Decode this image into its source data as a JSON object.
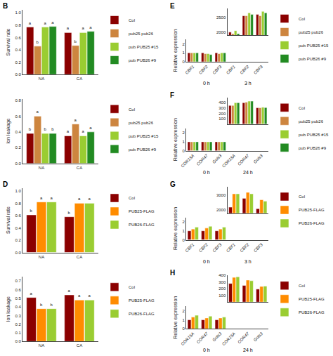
{
  "chart_data": [
    {
      "type": "bar",
      "title": "B",
      "y_label": "Survival rate",
      "categories": [
        "NA",
        "CA"
      ],
      "series": [
        {
          "name": "Col",
          "color": "#8B0000",
          "values": [
            0.77,
            0.68
          ],
          "annotations": [
            "a",
            "a"
          ]
        },
        {
          "name": "pub25 pub26",
          "color": "#CD853F",
          "values": [
            0.46,
            0.47
          ],
          "annotations": [
            "b",
            "b"
          ]
        },
        {
          "name": "pub PUB25 #15",
          "color": "#9ACD32",
          "values": [
            0.77,
            0.68
          ],
          "annotations": [
            "a",
            "a"
          ]
        },
        {
          "name": "pub PUB26 #9",
          "color": "#228B22",
          "values": [
            0.78,
            0.7
          ],
          "annotations": [
            "a",
            "a"
          ]
        }
      ],
      "ylim": [
        0,
        1.05
      ],
      "yticks": [
        {
          "value": 0,
          "label": "0.0"
        },
        0.2,
        0.4,
        0.6,
        0.8,
        {
          "value": 1,
          "label": "1.0"
        }
      ],
      "grid": false,
      "legend": "upper right"
    },
    {
      "type": "bar",
      "y_label": "Ion leakage",
      "categories": [
        "NA",
        "CA"
      ],
      "series": [
        {
          "name": "Col",
          "color": "#8B0000",
          "values": [
            0.38,
            0.35
          ],
          "annotations": [
            "b",
            "a"
          ]
        },
        {
          "name": "pub25 pub26",
          "color": "#CD853F",
          "values": [
            0.6,
            0.5
          ],
          "annotations": [
            "a",
            "a"
          ]
        },
        {
          "name": "pub PUB25 #15",
          "color": "#9ACD32",
          "values": [
            0.38,
            0.35
          ],
          "annotations": [
            "b",
            "a"
          ]
        },
        {
          "name": "pub PUB26 #9",
          "color": "#228B22",
          "values": [
            0.38,
            0.4
          ],
          "annotations": [
            "b",
            "a"
          ]
        }
      ],
      "ylim": [
        0,
        0.82
      ],
      "yticks": [
        {
          "value": 0,
          "label": "0.0"
        },
        0.2,
        0.4,
        0.6,
        0.8
      ],
      "grid": false,
      "legend": "upper right"
    },
    {
      "type": "bar",
      "title": "D",
      "y_label": "Survival rate",
      "categories": [
        "NA",
        "CA"
      ],
      "series": [
        {
          "name": "Col",
          "color": "#8B0000",
          "values": [
            0.61,
            0.58
          ],
          "annotations": [
            "b",
            "b"
          ]
        },
        {
          "name": "PUB25-FLAG",
          "color": "#FF8C00",
          "values": [
            0.82,
            0.8
          ],
          "annotations": [
            "a",
            "a"
          ]
        },
        {
          "name": "PUB26-FLAG",
          "color": "#9ACD32",
          "values": [
            0.82,
            0.8
          ],
          "annotations": [
            "a",
            "a"
          ]
        }
      ],
      "ylim": [
        0,
        1.05
      ],
      "yticks": [
        {
          "value": 0,
          "label": "0.0"
        },
        0.2,
        0.4,
        0.6,
        0.8,
        {
          "value": 1,
          "label": "1.0"
        }
      ],
      "grid": false,
      "legend": "upper right"
    },
    {
      "type": "bar",
      "y_label": "Ion leakage",
      "categories": [
        "NA",
        "CA"
      ],
      "series": [
        {
          "name": "Col",
          "color": "#8B0000",
          "values": [
            0.51,
            0.54
          ],
          "annotations": [
            "a",
            "a"
          ]
        },
        {
          "name": "PUB25-FLAG",
          "color": "#FF8C00",
          "values": [
            0.38,
            0.48
          ],
          "annotations": [
            "b",
            "a"
          ]
        },
        {
          "name": "PUB26-FLAG",
          "color": "#9ACD32",
          "values": [
            0.38,
            0.48
          ],
          "annotations": [
            "b",
            "a"
          ]
        }
      ],
      "ylim": [
        0,
        0.75
      ],
      "yticks": [
        {
          "value": 0,
          "label": "0.0"
        },
        0.1,
        0.2,
        0.3,
        0.4,
        0.5,
        0.6,
        0.7
      ],
      "grid": false,
      "legend": "upper right"
    },
    {
      "type": "bar",
      "title": "E",
      "categories": [
        null,
        null,
        null
      ],
      "series": [
        {
          "name": "Col",
          "color": "#8B0000",
          "values": [
            2000,
            2550,
            2600
          ]
        },
        {
          "name": "pub25 pub26",
          "color": "#CD853F",
          "values": [
            1950,
            2550,
            2550
          ]
        },
        {
          "name": "pub PUB25 #15",
          "color": "#9ACD32",
          "values": [
            2050,
            2650,
            2700
          ]
        },
        {
          "name": "pub PUB26 #9",
          "color": "#228B22",
          "values": [
            1950,
            2600,
            2650
          ]
        }
      ],
      "ylim": [
        1900,
        2800
      ],
      "yticks": [
        2000,
        2500
      ],
      "tick_labels": "y",
      "grid": false,
      "legend": "upper right"
    },
    {
      "type": "bar",
      "y_label": "Relative expression",
      "categories": [
        [
          "0 h",
          "CBF1"
        ],
        [
          "0 h",
          "CBF2"
        ],
        [
          "0 h",
          "CBF3"
        ],
        [
          "3 h",
          "CBF1"
        ],
        [
          "3 h",
          "CBF2"
        ],
        [
          "3 h",
          "CBF3"
        ]
      ],
      "series": [
        {
          "name": "Col",
          "color": "#8B0000",
          "values": [
            1.0,
            1.0,
            1.0,
            null,
            null,
            null
          ]
        },
        {
          "name": "pub25 pub26",
          "color": "#CD853F",
          "values": [
            1.0,
            0.9,
            0.9,
            null,
            null,
            null
          ]
        },
        {
          "name": "pub PUB25 #15",
          "color": "#9ACD32",
          "values": [
            1.0,
            0.9,
            1.0,
            null,
            null,
            null
          ]
        },
        {
          "name": "pub PUB26 #9",
          "color": "#228B22",
          "values": [
            1.0,
            0.8,
            1.0,
            null,
            null,
            null
          ]
        }
      ],
      "ylim": [
        0,
        2.5
      ],
      "yticks": [
        0,
        1,
        2
      ],
      "grid": false
    },
    {
      "type": "bar",
      "title": "F",
      "categories": [
        null,
        null,
        null
      ],
      "series": [
        {
          "name": "Col",
          "color": "#8B0000",
          "values": [
            350,
            400,
            305
          ]
        },
        {
          "name": "pub25 pub26",
          "color": "#CD853F",
          "values": [
            350,
            410,
            305
          ]
        },
        {
          "name": "pub PUB25 #15",
          "color": "#9ACD32",
          "values": [
            400,
            430,
            315
          ]
        },
        {
          "name": "pub PUB26 #9",
          "color": "#228B22",
          "values": [
            400,
            430,
            310
          ]
        }
      ],
      "ylim": [
        0,
        500
      ],
      "yticks": [
        100,
        200,
        300,
        400
      ],
      "tick_labels": "y",
      "grid": false,
      "legend": "upper right"
    },
    {
      "type": "bar",
      "y_label": "Relative expression",
      "categories": [
        [
          "0 h",
          "COR15A"
        ],
        [
          "0 h",
          "COR47"
        ],
        [
          "0 h",
          "Gols3"
        ],
        [
          "24 h",
          "COR15A"
        ],
        [
          "24 h",
          "COR47"
        ],
        [
          "24 h",
          "Gols3"
        ]
      ],
      "series": [
        {
          "name": "Col",
          "color": "#8B0000",
          "values": [
            1.0,
            1.0,
            1.0,
            null,
            null,
            null
          ]
        },
        {
          "name": "pub25 pub26",
          "color": "#CD853F",
          "values": [
            1.0,
            1.0,
            1.0,
            null,
            null,
            null
          ]
        },
        {
          "name": "pub PUB25 #15",
          "color": "#9ACD32",
          "values": [
            1.0,
            1.0,
            1.0,
            null,
            null,
            null
          ]
        },
        {
          "name": "pub PUB26 #9",
          "color": "#228B22",
          "values": [
            1.0,
            1.0,
            1.0,
            null,
            null,
            null
          ]
        }
      ],
      "ylim": [
        0,
        2.5
      ],
      "yticks": [
        0,
        1,
        2
      ],
      "grid": false
    },
    {
      "type": "bar",
      "title": "G",
      "categories": [
        null,
        null,
        null
      ],
      "series": [
        {
          "name": "Col",
          "color": "#8B0000",
          "values": [
            2200,
            2800,
            2100
          ]
        },
        {
          "name": "PUB25-FLAG",
          "color": "#FF8C00",
          "values": [
            3100,
            3200,
            2700
          ]
        },
        {
          "name": "PUB26-FLAG",
          "color": "#9ACD32",
          "values": [
            3100,
            3100,
            2600
          ]
        }
      ],
      "ylim": [
        1800,
        3600
      ],
      "yticks": [
        2000,
        3000
      ],
      "tick_labels": "y",
      "grid": false,
      "legend": "upper right"
    },
    {
      "type": "bar",
      "y_label": "Relative expression",
      "categories": [
        [
          "0 h",
          "CBF1"
        ],
        [
          "0 h",
          "CBF2"
        ],
        [
          "0 h",
          "CBF3"
        ],
        [
          "3 h",
          "CBF1"
        ],
        [
          "3 h",
          "CBF2"
        ],
        [
          "3 h",
          "CBF3"
        ]
      ],
      "series": [
        {
          "name": "Col",
          "color": "#8B0000",
          "values": [
            1.0,
            1.0,
            1.0,
            null,
            null,
            null
          ]
        },
        {
          "name": "PUB25-FLAG",
          "color": "#FF8C00",
          "values": [
            1.2,
            1.3,
            1.2,
            null,
            null,
            null
          ]
        },
        {
          "name": "PUB26-FLAG",
          "color": "#9ACD32",
          "values": [
            1.4,
            1.5,
            1.4,
            null,
            null,
            null
          ]
        }
      ],
      "ylim": [
        0,
        2.5
      ],
      "yticks": [
        0,
        1,
        2
      ],
      "grid": false
    },
    {
      "type": "bar",
      "title": "H",
      "categories": [
        null,
        null,
        null
      ],
      "series": [
        {
          "name": "Col",
          "color": "#8B0000",
          "values": [
            280,
            250,
            195
          ]
        },
        {
          "name": "PUB25-FLAG",
          "color": "#FF8C00",
          "values": [
            370,
            330,
            235
          ]
        },
        {
          "name": "PUB26-FLAG",
          "color": "#9ACD32",
          "values": [
            380,
            320,
            240
          ]
        }
      ],
      "ylim": [
        0,
        400
      ],
      "yticks": [
        100,
        200,
        300,
        400
      ],
      "tick_labels": "y",
      "grid": false,
      "legend": "upper right"
    },
    {
      "type": "bar",
      "y_label": "Relative expression",
      "categories": [
        [
          "0 h",
          "COR15A"
        ],
        [
          "0 h",
          "COR47"
        ],
        [
          "0 h",
          "Gols3"
        ],
        [
          "24 h",
          "COR15A"
        ],
        [
          "24 h",
          "COR47"
        ],
        [
          "24 h",
          "Gols3"
        ]
      ],
      "series": [
        {
          "name": "Col",
          "color": "#8B0000",
          "values": [
            1.0,
            1.0,
            1.0,
            null,
            null,
            null
          ]
        },
        {
          "name": "PUB25-FLAG",
          "color": "#FF8C00",
          "values": [
            1.3,
            1.2,
            1.2,
            null,
            null,
            null
          ]
        },
        {
          "name": "PUB26-FLAG",
          "color": "#9ACD32",
          "values": [
            1.5,
            1.4,
            1.3,
            null,
            null,
            null
          ]
        }
      ],
      "ylim": [
        0,
        2.5
      ],
      "yticks": [
        0,
        1,
        2
      ],
      "grid": false
    }
  ]
}
